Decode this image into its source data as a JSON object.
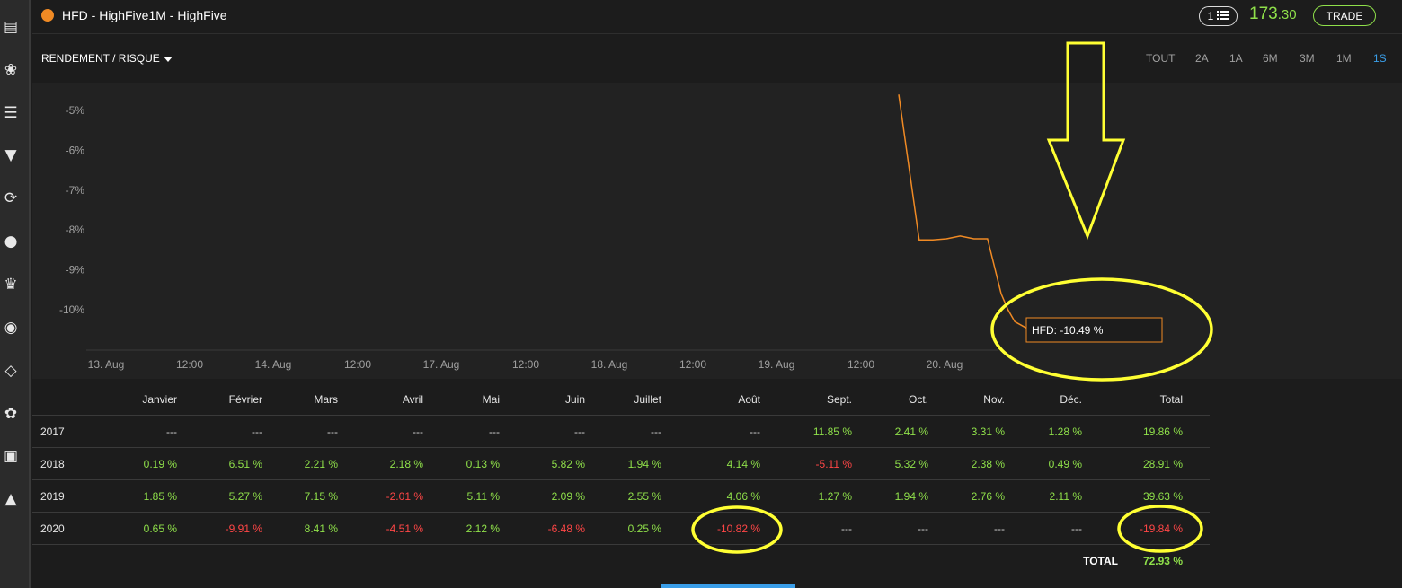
{
  "header": {
    "title": "HFD - HighFive1M - HighFive",
    "list_count": "1",
    "price_main": "173",
    "price_decimals": ".30",
    "trade_label": "TRADE"
  },
  "subheader": {
    "metric_label": "RENDEMENT / RISQUE",
    "ranges": [
      "TOUT",
      "2A",
      "1A",
      "6M",
      "3M",
      "1M",
      "1S"
    ],
    "active_range": "1S"
  },
  "sidebar_icons": [
    "dashboard-icon",
    "paw-icon",
    "list-icon",
    "filter-icon",
    "refresh-icon",
    "piggy-bank-icon",
    "trophy-icon",
    "medal-icon",
    "code-icon",
    "paw-circle-icon",
    "chat-icon",
    "graduation-icon"
  ],
  "chart_data": {
    "type": "line",
    "series": [
      {
        "name": "HFD",
        "color": "#f08a24",
        "x": [
          "2020-08-19 21:00",
          "2020-08-20 00:00",
          "2020-08-20 02:00",
          "2020-08-20 04:00",
          "2020-08-20 06:00",
          "2020-08-20 08:00",
          "2020-08-20 10:00",
          "2020-08-20 12:00",
          "2020-08-20 13:00",
          "2020-08-20 14:00",
          "2020-08-20 16:00",
          "2020-08-20 18:00"
        ],
        "y": [
          -4.6,
          -8.25,
          -8.25,
          -8.22,
          -8.15,
          -8.22,
          -8.22,
          -9.6,
          -10.0,
          -10.3,
          -10.49,
          -10.49
        ]
      }
    ],
    "y_ticks": [
      "-5%",
      "-6%",
      "-7%",
      "-8%",
      "-9%",
      "-10%"
    ],
    "x_ticks": [
      "13. Aug",
      "12:00",
      "14. Aug",
      "12:00",
      "17. Aug",
      "12:00",
      "18. Aug",
      "12:00",
      "19. Aug",
      "12:00",
      "20. Aug"
    ],
    "ylim": [
      -11,
      -4.6
    ],
    "tooltip": "HFD: -10.49 %",
    "grid": false
  },
  "table": {
    "columns": [
      "Janvier",
      "Février",
      "Mars",
      "Avril",
      "Mai",
      "Juin",
      "Juillet",
      "Août",
      "Sept.",
      "Oct.",
      "Nov.",
      "Déc.",
      "Total"
    ],
    "rows": [
      {
        "year": "2017",
        "values": [
          "---",
          "---",
          "---",
          "---",
          "---",
          "---",
          "---",
          "---",
          "11.85 %",
          "2.41 %",
          "3.31 %",
          "1.28 %",
          "19.86 %"
        ]
      },
      {
        "year": "2018",
        "values": [
          "0.19 %",
          "6.51 %",
          "2.21 %",
          "2.18 %",
          "0.13 %",
          "5.82 %",
          "1.94 %",
          "4.14 %",
          "-5.11 %",
          "5.32 %",
          "2.38 %",
          "0.49 %",
          "28.91 %"
        ]
      },
      {
        "year": "2019",
        "values": [
          "1.85 %",
          "5.27 %",
          "7.15 %",
          "-2.01 %",
          "5.11 %",
          "2.09 %",
          "2.55 %",
          "4.06 %",
          "1.27 %",
          "1.94 %",
          "2.76 %",
          "2.11 %",
          "39.63 %"
        ]
      },
      {
        "year": "2020",
        "values": [
          "0.65 %",
          "-9.91 %",
          "8.41 %",
          "-4.51 %",
          "2.12 %",
          "-6.48 %",
          "0.25 %",
          "-10.82 %",
          "---",
          "---",
          "---",
          "---",
          "-19.84 %"
        ]
      }
    ],
    "total_label": "TOTAL",
    "total_value": "72.93 %"
  },
  "colors": {
    "positive": "#8fe04a",
    "negative": "#ff4646",
    "accent": "#3a9ee8",
    "annotation": "#ffff33"
  }
}
